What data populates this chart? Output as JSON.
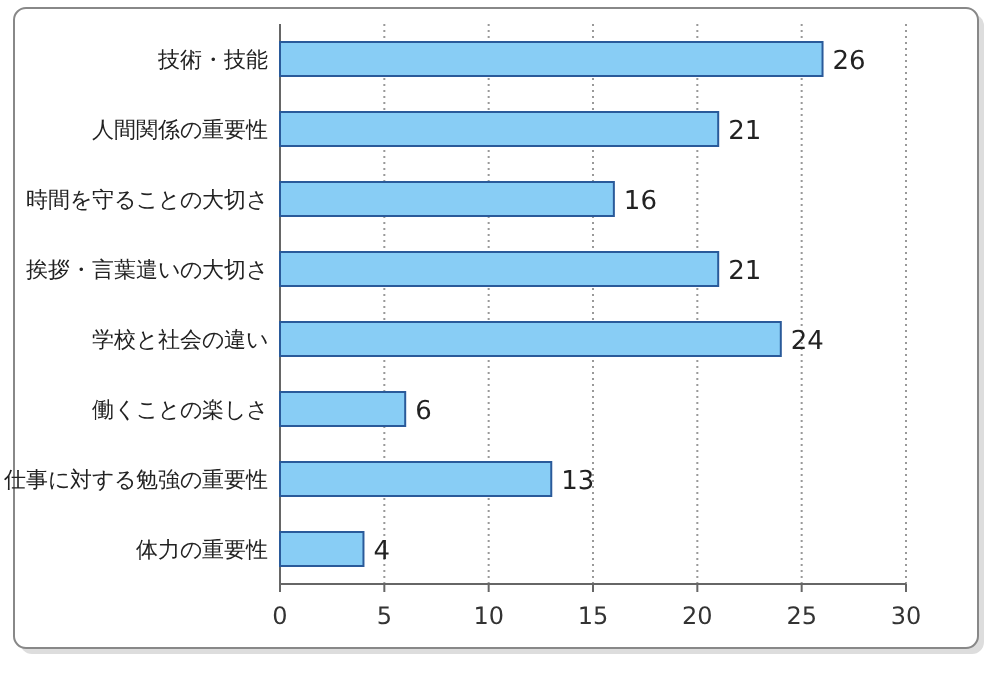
{
  "chart_data": {
    "type": "bar",
    "orientation": "horizontal",
    "categories": [
      "技術・技能",
      "人間関係の重要性",
      "時間を守ることの大切さ",
      "挨拶・言葉遣いの大切さ",
      "学校と社会の違い",
      "働くことの楽しさ",
      "仕事に対する勉強の重要性",
      "体力の重要性"
    ],
    "values": [
      26,
      21,
      16,
      21,
      24,
      6,
      13,
      4
    ],
    "color": "#88cdf5",
    "xlim": [
      0,
      30
    ],
    "xticks": [
      0,
      5,
      10,
      15,
      20,
      25,
      30
    ],
    "grid": "x",
    "data_labels": true
  }
}
